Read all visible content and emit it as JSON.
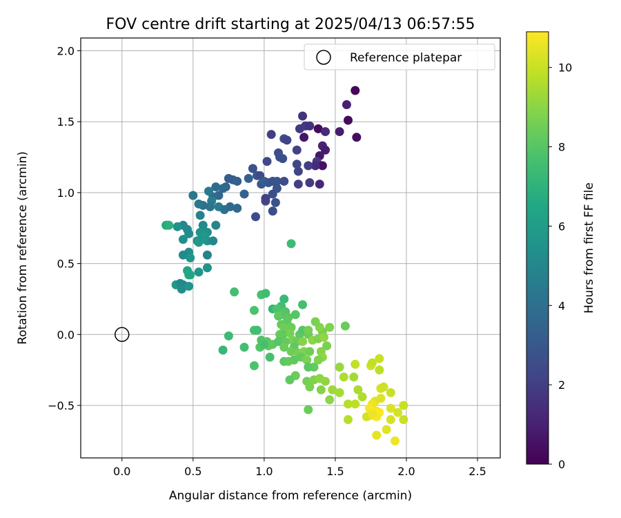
{
  "chart_data": {
    "type": "scatter",
    "title": "FOV centre drift starting at 2025/04/13 06:57:55",
    "xlabel": "Angular distance from reference (arcmin)",
    "ylabel": "Rotation from reference (arcmin)",
    "xlim": [
      -0.29,
      2.66
    ],
    "ylim": [
      -0.87,
      2.09
    ],
    "xticks": [
      0.0,
      0.5,
      1.0,
      1.5,
      2.0,
      2.5
    ],
    "xtick_labels": [
      "0.0",
      "0.5",
      "1.0",
      "1.5",
      "2.0",
      "2.5"
    ],
    "yticks": [
      -0.5,
      0.0,
      0.5,
      1.0,
      1.5,
      2.0
    ],
    "ytick_labels": [
      "−0.5",
      "0.0",
      "0.5",
      "1.0",
      "1.5",
      "2.0"
    ],
    "grid": true,
    "legend": {
      "placement": "top-right",
      "entries": [
        "Reference platepar"
      ]
    },
    "reference_point": {
      "x": 0.0,
      "y": 0.0,
      "label": "Reference platepar"
    },
    "colorbar": {
      "label": "Hours from first FF file",
      "min": 0,
      "max": 10.9,
      "ticks": [
        0,
        2,
        4,
        6,
        8,
        10
      ],
      "tick_labels": [
        "0",
        "2",
        "4",
        "6",
        "8",
        "10"
      ],
      "colormap": "viridis"
    },
    "points": [
      {
        "x": 1.64,
        "y": 1.72,
        "c": 0.2
      },
      {
        "x": 1.58,
        "y": 1.62,
        "c": 1.0
      },
      {
        "x": 1.59,
        "y": 1.51,
        "c": 0.3
      },
      {
        "x": 1.65,
        "y": 1.39,
        "c": 0.4
      },
      {
        "x": 1.53,
        "y": 1.43,
        "c": 0.9
      },
      {
        "x": 1.38,
        "y": 1.45,
        "c": 0.3
      },
      {
        "x": 1.43,
        "y": 1.43,
        "c": 1.3
      },
      {
        "x": 1.27,
        "y": 1.54,
        "c": 1.6
      },
      {
        "x": 1.29,
        "y": 1.47,
        "c": 1.7
      },
      {
        "x": 1.25,
        "y": 1.45,
        "c": 1.8
      },
      {
        "x": 1.32,
        "y": 1.47,
        "c": 1.5
      },
      {
        "x": 1.28,
        "y": 1.39,
        "c": 0.6
      },
      {
        "x": 1.41,
        "y": 1.33,
        "c": 1.1
      },
      {
        "x": 1.43,
        "y": 1.3,
        "c": 0.9
      },
      {
        "x": 1.39,
        "y": 1.26,
        "c": 0.7
      },
      {
        "x": 1.37,
        "y": 1.22,
        "c": 1.9
      },
      {
        "x": 1.41,
        "y": 1.19,
        "c": 0.5
      },
      {
        "x": 1.36,
        "y": 1.19,
        "c": 1.3
      },
      {
        "x": 1.31,
        "y": 1.19,
        "c": 2.0
      },
      {
        "x": 1.23,
        "y": 1.3,
        "c": 2.1
      },
      {
        "x": 1.23,
        "y": 1.2,
        "c": 2.3
      },
      {
        "x": 1.24,
        "y": 1.15,
        "c": 2.2
      },
      {
        "x": 1.24,
        "y": 1.06,
        "c": 2.0
      },
      {
        "x": 1.32,
        "y": 1.07,
        "c": 1.9
      },
      {
        "x": 1.39,
        "y": 1.06,
        "c": 1.2
      },
      {
        "x": 1.14,
        "y": 1.38,
        "c": 2.5
      },
      {
        "x": 1.16,
        "y": 1.37,
        "c": 2.2
      },
      {
        "x": 1.05,
        "y": 1.41,
        "c": 2.0
      },
      {
        "x": 1.1,
        "y": 1.28,
        "c": 2.6
      },
      {
        "x": 1.11,
        "y": 1.25,
        "c": 2.7
      },
      {
        "x": 1.13,
        "y": 1.24,
        "c": 2.6
      },
      {
        "x": 1.02,
        "y": 1.22,
        "c": 2.4
      },
      {
        "x": 0.92,
        "y": 1.17,
        "c": 2.8
      },
      {
        "x": 0.95,
        "y": 1.12,
        "c": 2.9
      },
      {
        "x": 0.97,
        "y": 1.12,
        "c": 2.5
      },
      {
        "x": 0.89,
        "y": 1.1,
        "c": 3.3
      },
      {
        "x": 0.98,
        "y": 1.06,
        "c": 3.0
      },
      {
        "x": 1.0,
        "y": 1.08,
        "c": 3.2
      },
      {
        "x": 1.03,
        "y": 1.07,
        "c": 3.0
      },
      {
        "x": 1.06,
        "y": 1.08,
        "c": 2.7
      },
      {
        "x": 1.09,
        "y": 1.08,
        "c": 2.9
      },
      {
        "x": 1.14,
        "y": 1.08,
        "c": 2.6
      },
      {
        "x": 1.09,
        "y": 1.03,
        "c": 2.8
      },
      {
        "x": 1.06,
        "y": 0.99,
        "c": 2.6
      },
      {
        "x": 1.01,
        "y": 0.94,
        "c": 2.4
      },
      {
        "x": 1.01,
        "y": 0.96,
        "c": 2.1
      },
      {
        "x": 1.08,
        "y": 0.93,
        "c": 2.8
      },
      {
        "x": 1.06,
        "y": 0.87,
        "c": 2.6
      },
      {
        "x": 0.94,
        "y": 0.83,
        "c": 2.5
      },
      {
        "x": 0.81,
        "y": 1.08,
        "c": 3.3
      },
      {
        "x": 0.78,
        "y": 1.09,
        "c": 3.4
      },
      {
        "x": 0.75,
        "y": 1.1,
        "c": 3.2
      },
      {
        "x": 0.73,
        "y": 1.04,
        "c": 3.5
      },
      {
        "x": 0.71,
        "y": 1.03,
        "c": 3.7
      },
      {
        "x": 0.66,
        "y": 1.04,
        "c": 3.8
      },
      {
        "x": 0.68,
        "y": 0.98,
        "c": 3.6
      },
      {
        "x": 0.64,
        "y": 0.97,
        "c": 3.9
      },
      {
        "x": 0.61,
        "y": 1.01,
        "c": 4.4
      },
      {
        "x": 0.63,
        "y": 0.94,
        "c": 4.6
      },
      {
        "x": 0.62,
        "y": 0.9,
        "c": 4.2
      },
      {
        "x": 0.57,
        "y": 0.91,
        "c": 4.0
      },
      {
        "x": 0.54,
        "y": 0.92,
        "c": 4.3
      },
      {
        "x": 0.5,
        "y": 0.98,
        "c": 4.3
      },
      {
        "x": 0.68,
        "y": 0.9,
        "c": 4.6
      },
      {
        "x": 0.72,
        "y": 0.88,
        "c": 4.1
      },
      {
        "x": 0.76,
        "y": 0.9,
        "c": 3.8
      },
      {
        "x": 0.81,
        "y": 0.89,
        "c": 3.7
      },
      {
        "x": 0.86,
        "y": 0.99,
        "c": 3.4
      },
      {
        "x": 0.55,
        "y": 0.84,
        "c": 4.8
      },
      {
        "x": 0.66,
        "y": 0.77,
        "c": 4.9
      },
      {
        "x": 0.57,
        "y": 0.77,
        "c": 5.2
      },
      {
        "x": 0.6,
        "y": 0.72,
        "c": 5.4
      },
      {
        "x": 0.55,
        "y": 0.72,
        "c": 5.5
      },
      {
        "x": 0.58,
        "y": 0.69,
        "c": 5.9
      },
      {
        "x": 0.6,
        "y": 0.66,
        "c": 5.6
      },
      {
        "x": 0.56,
        "y": 0.67,
        "c": 5.7
      },
      {
        "x": 0.53,
        "y": 0.66,
        "c": 5.4
      },
      {
        "x": 0.54,
        "y": 0.65,
        "c": 5.8
      },
      {
        "x": 0.64,
        "y": 0.66,
        "c": 5.0
      },
      {
        "x": 0.46,
        "y": 0.74,
        "c": 5.1
      },
      {
        "x": 0.47,
        "y": 0.71,
        "c": 5.2
      },
      {
        "x": 0.43,
        "y": 0.77,
        "c": 5.0
      },
      {
        "x": 0.39,
        "y": 0.76,
        "c": 5.5
      },
      {
        "x": 0.32,
        "y": 0.77,
        "c": 5.9
      },
      {
        "x": 0.31,
        "y": 0.77,
        "c": 6.6
      },
      {
        "x": 0.33,
        "y": 0.77,
        "c": 6.9
      },
      {
        "x": 0.43,
        "y": 0.67,
        "c": 5.4
      },
      {
        "x": 0.47,
        "y": 0.58,
        "c": 5.4
      },
      {
        "x": 0.43,
        "y": 0.56,
        "c": 5.1
      },
      {
        "x": 0.48,
        "y": 0.54,
        "c": 5.7
      },
      {
        "x": 0.6,
        "y": 0.56,
        "c": 4.8
      },
      {
        "x": 0.6,
        "y": 0.47,
        "c": 5.5
      },
      {
        "x": 0.46,
        "y": 0.45,
        "c": 6.3
      },
      {
        "x": 0.47,
        "y": 0.42,
        "c": 6.7
      },
      {
        "x": 0.54,
        "y": 0.44,
        "c": 5.6
      },
      {
        "x": 0.48,
        "y": 0.42,
        "c": 6.4
      },
      {
        "x": 0.38,
        "y": 0.35,
        "c": 5.8
      },
      {
        "x": 0.41,
        "y": 0.36,
        "c": 5.2
      },
      {
        "x": 0.43,
        "y": 0.35,
        "c": 5.0
      },
      {
        "x": 0.42,
        "y": 0.32,
        "c": 5.3
      },
      {
        "x": 0.47,
        "y": 0.34,
        "c": 5.6
      },
      {
        "x": 1.19,
        "y": 0.64,
        "c": 7.4
      },
      {
        "x": 0.79,
        "y": 0.3,
        "c": 7.6
      },
      {
        "x": 0.98,
        "y": 0.28,
        "c": 7.7
      },
      {
        "x": 1.01,
        "y": 0.29,
        "c": 7.5
      },
      {
        "x": 1.14,
        "y": 0.25,
        "c": 7.3
      },
      {
        "x": 1.12,
        "y": 0.2,
        "c": 7.6
      },
      {
        "x": 1.06,
        "y": 0.18,
        "c": 7.2
      },
      {
        "x": 1.09,
        "y": 0.18,
        "c": 7.8
      },
      {
        "x": 1.15,
        "y": 0.16,
        "c": 7.9
      },
      {
        "x": 1.13,
        "y": 0.14,
        "c": 8.0
      },
      {
        "x": 1.1,
        "y": 0.13,
        "c": 8.2
      },
      {
        "x": 1.17,
        "y": 0.12,
        "c": 8.1
      },
      {
        "x": 1.22,
        "y": 0.14,
        "c": 8.0
      },
      {
        "x": 1.27,
        "y": 0.21,
        "c": 7.6
      },
      {
        "x": 0.93,
        "y": 0.17,
        "c": 7.8
      },
      {
        "x": 0.93,
        "y": 0.03,
        "c": 7.7
      },
      {
        "x": 0.95,
        "y": 0.03,
        "c": 7.6
      },
      {
        "x": 0.75,
        "y": -0.01,
        "c": 7.4
      },
      {
        "x": 1.12,
        "y": 0.07,
        "c": 8.3
      },
      {
        "x": 1.16,
        "y": 0.09,
        "c": 8.2
      },
      {
        "x": 1.14,
        "y": 0.05,
        "c": 8.5
      },
      {
        "x": 1.19,
        "y": 0.05,
        "c": 8.4
      },
      {
        "x": 1.13,
        "y": 0.0,
        "c": 8.1
      },
      {
        "x": 1.11,
        "y": 0.0,
        "c": 8.3
      },
      {
        "x": 1.18,
        "y": 0.01,
        "c": 8.6
      },
      {
        "x": 1.25,
        "y": 0.0,
        "c": 8.2
      },
      {
        "x": 1.27,
        "y": 0.03,
        "c": 8.0
      },
      {
        "x": 1.31,
        "y": 0.0,
        "c": 8.4
      },
      {
        "x": 1.31,
        "y": 0.03,
        "c": 8.6
      },
      {
        "x": 1.2,
        "y": -0.04,
        "c": 8.7
      },
      {
        "x": 1.23,
        "y": -0.05,
        "c": 8.4
      },
      {
        "x": 1.27,
        "y": -0.05,
        "c": 8.9
      },
      {
        "x": 1.34,
        "y": -0.04,
        "c": 9.0
      },
      {
        "x": 1.38,
        "y": -0.03,
        "c": 8.8
      },
      {
        "x": 1.41,
        "y": 0.02,
        "c": 8.6
      },
      {
        "x": 1.42,
        "y": -0.02,
        "c": 9.1
      },
      {
        "x": 1.44,
        "y": -0.08,
        "c": 8.7
      },
      {
        "x": 1.39,
        "y": 0.05,
        "c": 8.9
      },
      {
        "x": 1.36,
        "y": 0.09,
        "c": 8.7
      },
      {
        "x": 1.46,
        "y": 0.05,
        "c": 8.8
      },
      {
        "x": 1.57,
        "y": 0.06,
        "c": 8.4
      },
      {
        "x": 0.98,
        "y": -0.04,
        "c": 7.9
      },
      {
        "x": 1.02,
        "y": -0.05,
        "c": 8.1
      },
      {
        "x": 1.03,
        "y": -0.08,
        "c": 8.3
      },
      {
        "x": 0.97,
        "y": -0.09,
        "c": 8.0
      },
      {
        "x": 1.0,
        "y": -0.07,
        "c": 7.7
      },
      {
        "x": 1.06,
        "y": -0.07,
        "c": 8.2
      },
      {
        "x": 1.1,
        "y": -0.05,
        "c": 8.0
      },
      {
        "x": 1.15,
        "y": -0.05,
        "c": 8.3
      },
      {
        "x": 1.14,
        "y": -0.09,
        "c": 8.4
      },
      {
        "x": 1.21,
        "y": -0.09,
        "c": 8.2
      },
      {
        "x": 1.19,
        "y": -0.12,
        "c": 8.5
      },
      {
        "x": 1.24,
        "y": -0.13,
        "c": 8.6
      },
      {
        "x": 1.28,
        "y": -0.12,
        "c": 8.8
      },
      {
        "x": 1.32,
        "y": -0.12,
        "c": 8.5
      },
      {
        "x": 1.26,
        "y": -0.16,
        "c": 8.3
      },
      {
        "x": 1.3,
        "y": -0.18,
        "c": 8.7
      },
      {
        "x": 1.4,
        "y": -0.12,
        "c": 8.9
      },
      {
        "x": 1.41,
        "y": -0.16,
        "c": 9.0
      },
      {
        "x": 1.38,
        "y": -0.18,
        "c": 8.8
      },
      {
        "x": 1.14,
        "y": -0.19,
        "c": 8.1
      },
      {
        "x": 1.17,
        "y": -0.19,
        "c": 8.3
      },
      {
        "x": 1.21,
        "y": -0.18,
        "c": 8.2
      },
      {
        "x": 1.04,
        "y": -0.16,
        "c": 7.7
      },
      {
        "x": 0.86,
        "y": -0.09,
        "c": 7.6
      },
      {
        "x": 0.71,
        "y": -0.11,
        "c": 7.2
      },
      {
        "x": 0.93,
        "y": -0.22,
        "c": 7.8
      },
      {
        "x": 1.35,
        "y": -0.23,
        "c": 8.3
      },
      {
        "x": 1.31,
        "y": -0.23,
        "c": 8.1
      },
      {
        "x": 1.22,
        "y": -0.29,
        "c": 8.4
      },
      {
        "x": 1.18,
        "y": -0.32,
        "c": 8.2
      },
      {
        "x": 1.3,
        "y": -0.33,
        "c": 8.6
      },
      {
        "x": 1.35,
        "y": -0.32,
        "c": 8.8
      },
      {
        "x": 1.39,
        "y": -0.31,
        "c": 9.0
      },
      {
        "x": 1.43,
        "y": -0.33,
        "c": 9.1
      },
      {
        "x": 1.32,
        "y": -0.37,
        "c": 8.7
      },
      {
        "x": 1.4,
        "y": -0.39,
        "c": 8.9
      },
      {
        "x": 1.48,
        "y": -0.39,
        "c": 9.3
      },
      {
        "x": 1.53,
        "y": -0.41,
        "c": 9.4
      },
      {
        "x": 1.46,
        "y": -0.46,
        "c": 9.0
      },
      {
        "x": 1.53,
        "y": -0.23,
        "c": 9.2
      },
      {
        "x": 1.56,
        "y": -0.3,
        "c": 9.6
      },
      {
        "x": 1.63,
        "y": -0.3,
        "c": 9.4
      },
      {
        "x": 1.66,
        "y": -0.39,
        "c": 9.5
      },
      {
        "x": 1.59,
        "y": -0.49,
        "c": 9.7
      },
      {
        "x": 1.64,
        "y": -0.49,
        "c": 9.8
      },
      {
        "x": 1.69,
        "y": -0.44,
        "c": 9.6
      },
      {
        "x": 1.64,
        "y": -0.21,
        "c": 9.9
      },
      {
        "x": 1.75,
        "y": -0.22,
        "c": 10.1
      },
      {
        "x": 1.76,
        "y": -0.2,
        "c": 9.9
      },
      {
        "x": 1.81,
        "y": -0.17,
        "c": 10.0
      },
      {
        "x": 1.81,
        "y": -0.25,
        "c": 9.8
      },
      {
        "x": 1.82,
        "y": -0.38,
        "c": 10.2
      },
      {
        "x": 1.84,
        "y": -0.37,
        "c": 10.1
      },
      {
        "x": 1.89,
        "y": -0.41,
        "c": 10.0
      },
      {
        "x": 1.82,
        "y": -0.45,
        "c": 10.3
      },
      {
        "x": 1.78,
        "y": -0.47,
        "c": 10.4
      },
      {
        "x": 1.76,
        "y": -0.49,
        "c": 10.6
      },
      {
        "x": 1.74,
        "y": -0.52,
        "c": 10.8
      },
      {
        "x": 1.79,
        "y": -0.54,
        "c": 10.7
      },
      {
        "x": 1.81,
        "y": -0.55,
        "c": 10.9
      },
      {
        "x": 1.79,
        "y": -0.58,
        "c": 10.8
      },
      {
        "x": 1.75,
        "y": -0.57,
        "c": 10.5
      },
      {
        "x": 1.72,
        "y": -0.58,
        "c": 10.2
      },
      {
        "x": 1.89,
        "y": -0.52,
        "c": 10.3
      },
      {
        "x": 1.94,
        "y": -0.55,
        "c": 10.2
      },
      {
        "x": 1.98,
        "y": -0.5,
        "c": 10.0
      },
      {
        "x": 1.89,
        "y": -0.6,
        "c": 10.2
      },
      {
        "x": 1.98,
        "y": -0.6,
        "c": 10.0
      },
      {
        "x": 1.59,
        "y": -0.6,
        "c": 9.7
      },
      {
        "x": 1.79,
        "y": -0.71,
        "c": 10.5
      },
      {
        "x": 1.86,
        "y": -0.67,
        "c": 10.4
      },
      {
        "x": 1.92,
        "y": -0.75,
        "c": 10.6
      },
      {
        "x": 1.31,
        "y": -0.53,
        "c": 8.4
      },
      {
        "x": 1.76,
        "y": -0.56,
        "c": 10.6
      }
    ]
  }
}
